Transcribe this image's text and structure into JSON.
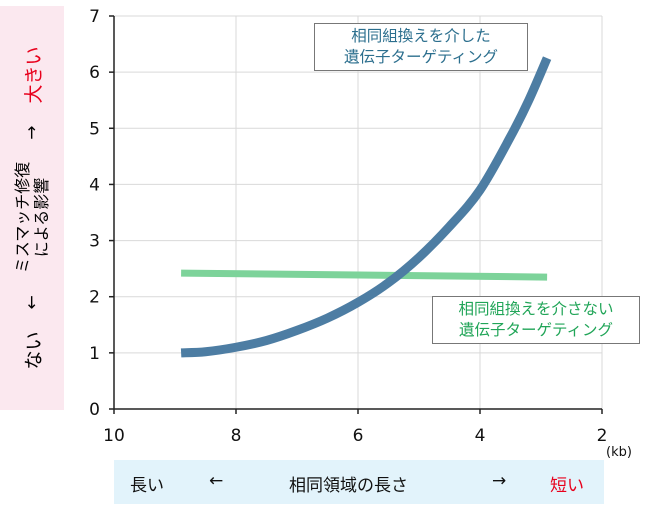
{
  "chart_data": {
    "type": "line",
    "xlim": [
      10,
      2
    ],
    "ylim": [
      0,
      7
    ],
    "xticks": [
      "10",
      "8",
      "6",
      "4",
      "2"
    ],
    "yticks": [
      "0",
      "1",
      "2",
      "3",
      "4",
      "5",
      "6",
      "7"
    ],
    "x_unit": "(kb)",
    "series": [
      {
        "name": "相同組換えを介した遺伝子ターゲティング",
        "color": "#4d7da3",
        "x": [
          8.9,
          8.5,
          8.0,
          7.5,
          7.0,
          6.5,
          6.0,
          5.5,
          5.0,
          4.5,
          4.0,
          3.5,
          3.2,
          2.9
        ],
        "y": [
          1.0,
          1.02,
          1.1,
          1.22,
          1.4,
          1.62,
          1.9,
          2.25,
          2.7,
          3.25,
          3.9,
          4.85,
          5.5,
          6.25
        ]
      },
      {
        "name": "相同組換えを介さない遺伝子ターゲティング",
        "color": "#7dd39a",
        "x": [
          8.9,
          2.9
        ],
        "y": [
          2.42,
          2.35
        ]
      }
    ]
  },
  "callouts": {
    "with_line1": "相同組換えを介した",
    "with_line2": "遺伝子ターゲティング",
    "without_line1": "相同組換えを介さない",
    "without_line2": "遺伝子ターゲティング"
  },
  "y_axis_label": {
    "low": "ない",
    "arrow_left": "←",
    "line1": "ミスマッチ修復",
    "line2": "による影響",
    "arrow_right": "→",
    "high": "大きい"
  },
  "x_axis_label": {
    "left": "長い",
    "arrow_left": "←",
    "center": "相同領域の長さ",
    "arrow_right": "→",
    "right": "短い"
  },
  "colors": {
    "red_emphasis": "#e8001c",
    "y_box": "#fbe8ef",
    "x_box": "#e2f3fb"
  }
}
